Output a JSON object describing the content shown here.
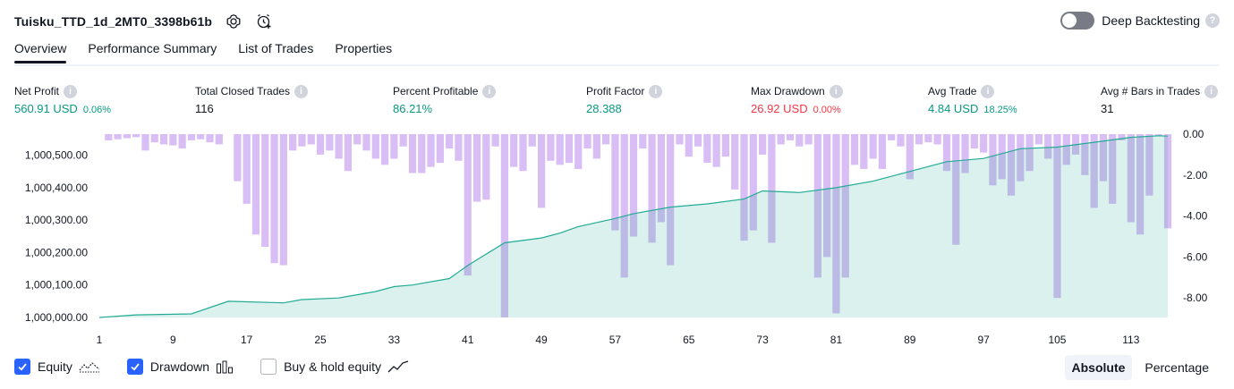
{
  "header": {
    "strategy_name": "Tuisku_TTD_1d_2MT0_3398b61b",
    "icons": [
      "settings-icon",
      "add-alert-icon"
    ],
    "deep_backtesting_label": "Deep Backtesting",
    "deep_backtesting_enabled": false
  },
  "tabs": [
    {
      "label": "Overview",
      "active": true
    },
    {
      "label": "Performance Summary",
      "active": false
    },
    {
      "label": "List of Trades",
      "active": false
    },
    {
      "label": "Properties",
      "active": false
    }
  ],
  "metrics": {
    "net_profit": {
      "label": "Net Profit",
      "value": "560.91 USD",
      "pct": "0.06%"
    },
    "total_closed_trades": {
      "label": "Total Closed Trades",
      "value": "116"
    },
    "percent_profitable": {
      "label": "Percent Profitable",
      "value": "86.21%"
    },
    "profit_factor": {
      "label": "Profit Factor",
      "value": "28.388"
    },
    "max_drawdown": {
      "label": "Max Drawdown",
      "value": "26.92 USD",
      "pct": "0.00%"
    },
    "avg_trade": {
      "label": "Avg Trade",
      "value": "4.84 USD",
      "pct": "18.25%"
    },
    "avg_bars": {
      "label": "Avg # Bars in Trades",
      "value": "31"
    }
  },
  "chart_data": {
    "type": "area",
    "x_tick_labels": [
      "1",
      "9",
      "17",
      "25",
      "33",
      "41",
      "49",
      "57",
      "65",
      "73",
      "81",
      "89",
      "97",
      "105",
      "113"
    ],
    "x_ticks": [
      1,
      9,
      17,
      25,
      33,
      41,
      49,
      57,
      65,
      73,
      81,
      89,
      97,
      105,
      113
    ],
    "xlim": [
      1,
      117
    ],
    "left_axis": {
      "tick_labels": [
        "1,000,000.00",
        "1,000,100.00",
        "1,000,200.00",
        "1,000,300.00",
        "1,000,400.00",
        "1,000,500.00"
      ],
      "ticks": [
        1000000,
        1000100,
        1000200,
        1000300,
        1000400,
        1000500
      ],
      "ylim": [
        1000000,
        1000565
      ]
    },
    "right_axis": {
      "tick_labels": [
        "0.00",
        "-2.00",
        "-4.00",
        "-6.00",
        "-8.00"
      ],
      "ticks": [
        0,
        -2,
        -4,
        -6,
        -8
      ],
      "ylim": [
        -8.95,
        0
      ]
    },
    "series": [
      {
        "name": "Equity",
        "type": "area",
        "color": "#22ab94",
        "x": [
          1,
          5,
          9,
          11,
          15,
          21,
          23,
          27,
          31,
          33,
          35,
          39,
          41,
          45,
          49,
          51,
          53,
          57,
          59,
          63,
          67,
          71,
          73,
          77,
          81,
          85,
          89,
          93,
          97,
          101,
          105,
          109,
          113,
          116,
          117
        ],
        "y": [
          1000000,
          1000008,
          1000010,
          1000011,
          1000050,
          1000045,
          1000055,
          1000060,
          1000080,
          1000095,
          1000100,
          1000120,
          1000160,
          1000230,
          1000245,
          1000260,
          1000280,
          1000305,
          1000320,
          1000340,
          1000350,
          1000365,
          1000390,
          1000385,
          1000400,
          1000420,
          1000450,
          1000480,
          1000490,
          1000520,
          1000525,
          1000540,
          1000555,
          1000560,
          1000559
        ]
      },
      {
        "name": "Drawdown",
        "type": "bar",
        "color": "#d1b3f2",
        "x": [
          1,
          2,
          3,
          4,
          5,
          6,
          7,
          8,
          9,
          10,
          11,
          12,
          13,
          14,
          15,
          16,
          17,
          18,
          19,
          20,
          21,
          22,
          23,
          24,
          25,
          26,
          27,
          28,
          29,
          30,
          31,
          32,
          33,
          34,
          35,
          36,
          37,
          38,
          39,
          40,
          41,
          42,
          43,
          44,
          45,
          46,
          47,
          48,
          49,
          50,
          51,
          52,
          53,
          54,
          55,
          56,
          57,
          58,
          59,
          60,
          61,
          62,
          63,
          64,
          65,
          66,
          67,
          68,
          69,
          70,
          71,
          72,
          73,
          74,
          75,
          76,
          77,
          78,
          79,
          80,
          81,
          82,
          83,
          84,
          85,
          86,
          87,
          88,
          89,
          90,
          91,
          92,
          93,
          94,
          95,
          96,
          97,
          98,
          99,
          100,
          101,
          102,
          103,
          104,
          105,
          106,
          107,
          108,
          109,
          110,
          111,
          112,
          113,
          114,
          115,
          116,
          117
        ],
        "values": [
          0,
          -0.3,
          -0.25,
          -0.2,
          -0.15,
          -0.8,
          -0.4,
          -0.5,
          -0.55,
          -0.7,
          -0.3,
          -0.25,
          -0.4,
          -0.5,
          0,
          -2.3,
          -3.4,
          -4.9,
          -5.5,
          -6.3,
          -6.4,
          -0.8,
          -0.6,
          -0.5,
          -1.0,
          -0.8,
          -1.2,
          -1.8,
          -0.5,
          -0.8,
          -1.2,
          -1.5,
          -1.2,
          -0.6,
          -1.9,
          -1.9,
          -1.6,
          -1.4,
          -0.7,
          -1.3,
          -6.9,
          -3.3,
          -3.2,
          -0.6,
          -8.95,
          -1.6,
          -1.8,
          -0.6,
          -3.6,
          -1.3,
          -1.5,
          -1.4,
          -1.7,
          -0.7,
          -1.2,
          -0.5,
          -4.7,
          -7.0,
          -5.0,
          -0.7,
          -5.3,
          -4.3,
          -6.4,
          -0.5,
          -1.1,
          -0.6,
          -1.4,
          -1.6,
          -1.1,
          -2.7,
          -5.2,
          -4.7,
          -1.0,
          -5.3,
          -0.5,
          -0.3,
          -0.6,
          -0.5,
          -7.0,
          -6.0,
          -8.75,
          -7.0,
          -1.5,
          -1.7,
          -1.2,
          -1.7,
          -0.3,
          -0.6,
          -2.2,
          -0.5,
          -0.4,
          -0.5,
          -1.8,
          -5.4,
          -1.9,
          -0.7,
          -0.9,
          -2.5,
          -2.2,
          -3.0,
          -2.3,
          -1.8,
          -0.5,
          -1.2,
          -8.0,
          -1.5,
          -1.0,
          -2.0,
          -3.6,
          -2.3,
          -3.4,
          -0.3,
          -4.3,
          -4.9,
          -3.0,
          -0.1,
          -4.6
        ]
      }
    ]
  },
  "legend": {
    "equity": {
      "label": "Equity",
      "checked": true,
      "icon": "equity-line-icon"
    },
    "drawdown": {
      "label": "Drawdown",
      "checked": true,
      "icon": "bars-icon"
    },
    "buy_hold": {
      "label": "Buy & hold equity",
      "checked": false,
      "icon": "trend-line-icon"
    }
  },
  "mode": {
    "absolute_label": "Absolute",
    "percentage_label": "Percentage",
    "active": "Absolute"
  }
}
